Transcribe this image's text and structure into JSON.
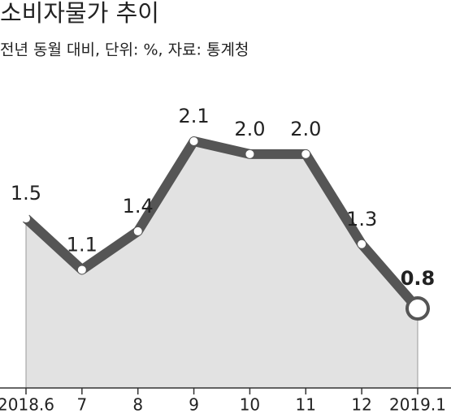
{
  "chart_data": {
    "type": "area-line",
    "title": "소비자물가 추이",
    "subtitle": "전년 동월 대비, 단위: %, 자료: 통계청",
    "categories": [
      "2018.6",
      "7",
      "8",
      "9",
      "10",
      "11",
      "12",
      "2019.1"
    ],
    "values": [
      1.5,
      1.1,
      1.4,
      2.1,
      2.0,
      2.0,
      1.3,
      0.8
    ],
    "value_labels": [
      "1.5",
      "1.1",
      "1.4",
      "2.1",
      "2.0",
      "2.0",
      "1.3",
      "0.8"
    ],
    "color": "#555555",
    "fill": "#e2e2e2"
  }
}
